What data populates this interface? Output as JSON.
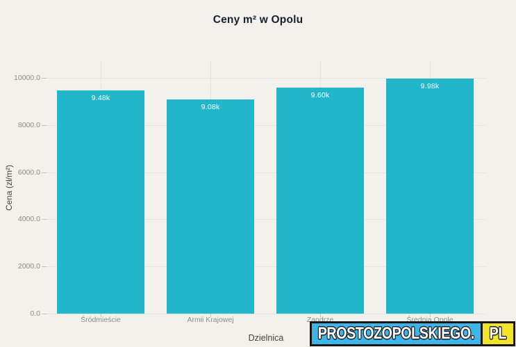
{
  "title": "Ceny m² w Opolu",
  "chart_data": {
    "type": "bar",
    "title": "Ceny m² w Opolu",
    "xlabel": "Dzielnica",
    "ylabel": "Cena (zł/m²)",
    "categories": [
      "Śródmieście",
      "Armii Krajowej",
      "Zaodrze",
      "Średnia Opole"
    ],
    "categories_obscured_by_watermark": [
      false,
      false,
      true,
      true
    ],
    "values": [
      9480,
      9080,
      9600,
      9980
    ],
    "bar_value_labels": [
      "9.48k",
      "9.08k",
      "9.60k",
      "9.98k"
    ],
    "ylim": [
      0,
      10000
    ],
    "yticks": [
      0,
      2000,
      4000,
      6000,
      8000,
      10000
    ],
    "ytick_labels": [
      "0.0",
      "2000.0",
      "4000.0",
      "6000.0",
      "8000.0",
      "10000.0"
    ],
    "grid": true,
    "legend": false,
    "bar_color": "#22b6ca",
    "value_label_color": "#ffffff"
  },
  "watermark": {
    "text_main": "PROSTOZOPOLSKIEGO.",
    "text_suffix": "PL",
    "main_bg": "#3eb5e8",
    "suffix_bg": "#f2e42a",
    "text_color": "#ffffff",
    "border_color": "#161616"
  },
  "colors": {
    "background": "#f2f1eb",
    "grid": "#e5e4de",
    "tick_mark": "#c4c3bc",
    "tick_text": "#8d8d87",
    "axis_title_text": "#45453f",
    "chart_title_text": "#16222e"
  }
}
